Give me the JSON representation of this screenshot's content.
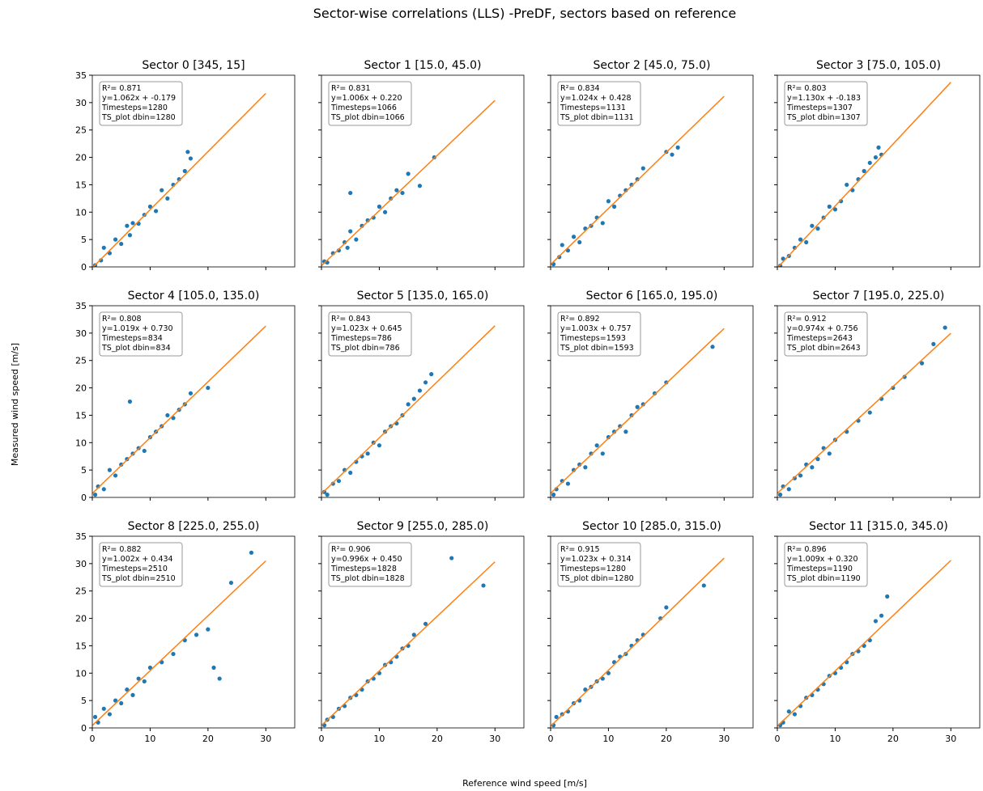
{
  "title": "Sector-wise correlations (LLS) -PreDF, sectors based on reference",
  "x_label": "Reference wind speed [m/s]",
  "y_label": "Measured wind speed [m/s]",
  "chart_data": [
    {
      "type": "scatter",
      "title": "Sector 0 [345, 15]",
      "annotation": [
        "R²= 0.871",
        "y=1.062x + -0.179",
        "Timesteps=1280",
        "TS_plot dbin=1280"
      ],
      "xlim": [
        0,
        35
      ],
      "ylim": [
        0,
        35
      ],
      "xticks": [
        0,
        10,
        20,
        30
      ],
      "yticks": [
        0,
        5,
        10,
        15,
        20,
        25,
        30,
        35
      ],
      "series": [
        {
          "color": "#1f77b4",
          "x": [
            0.5,
            1.5,
            2,
            3,
            4,
            5,
            6,
            6.5,
            7,
            8,
            9,
            10,
            11,
            12,
            13,
            14,
            15,
            16,
            16.5,
            17
          ],
          "values": [
            0.3,
            1.2,
            3.5,
            2.5,
            5,
            4.2,
            7.5,
            5.8,
            8,
            7.9,
            9.5,
            11,
            10.2,
            14,
            12.5,
            15,
            16,
            17.5,
            21,
            19.8
          ]
        },
        {
          "type": "line",
          "color": "#ff7f0e",
          "x": [
            0,
            30
          ],
          "values": [
            -0.179,
            31.681
          ]
        }
      ]
    },
    {
      "type": "scatter",
      "title": "Sector 1 [15.0, 45.0)",
      "annotation": [
        "R²= 0.831",
        "y=1.006x + 0.220",
        "Timesteps=1066",
        "TS_plot dbin=1066"
      ],
      "xlim": [
        0,
        35
      ],
      "ylim": [
        0,
        35
      ],
      "xticks": [
        0,
        10,
        20,
        30
      ],
      "yticks": [
        0,
        5,
        10,
        15,
        20,
        25,
        30,
        35
      ],
      "series": [
        {
          "color": "#1f77b4",
          "x": [
            0.5,
            1,
            2,
            3,
            4,
            4.5,
            5,
            6,
            7,
            8,
            9,
            10,
            11,
            12,
            13,
            14,
            15,
            17,
            19.5,
            5
          ],
          "values": [
            1,
            0.8,
            2.5,
            3,
            4.5,
            3.5,
            6.5,
            5,
            7.5,
            8.5,
            9,
            11,
            10,
            12.5,
            14,
            13.5,
            17,
            14.8,
            20,
            13.5
          ]
        },
        {
          "type": "line",
          "color": "#ff7f0e",
          "x": [
            0,
            30
          ],
          "values": [
            0.22,
            30.4
          ]
        }
      ]
    },
    {
      "type": "scatter",
      "title": "Sector 2 [45.0, 75.0)",
      "annotation": [
        "R²= 0.834",
        "y=1.024x + 0.428",
        "Timesteps=1131",
        "TS_plot dbin=1131"
      ],
      "xlim": [
        0,
        35
      ],
      "ylim": [
        0,
        35
      ],
      "xticks": [
        0,
        10,
        20,
        30
      ],
      "yticks": [
        0,
        5,
        10,
        15,
        20,
        25,
        30,
        35
      ],
      "series": [
        {
          "color": "#1f77b4",
          "x": [
            0.5,
            1.5,
            2,
            3,
            4,
            5,
            6,
            7,
            8,
            9,
            10,
            11,
            12,
            13,
            14,
            15,
            16,
            20,
            21,
            22
          ],
          "values": [
            0.5,
            1.8,
            4,
            3,
            5.5,
            4.5,
            7,
            7.5,
            9,
            8,
            12,
            11,
            13,
            14,
            15,
            16,
            18,
            21,
            20.5,
            21.8
          ]
        },
        {
          "type": "line",
          "color": "#ff7f0e",
          "x": [
            0,
            30
          ],
          "values": [
            0.428,
            31.148
          ]
        }
      ]
    },
    {
      "type": "scatter",
      "title": "Sector 3 [75.0, 105.0)",
      "annotation": [
        "R²= 0.803",
        "y=1.130x + -0.183",
        "Timesteps=1307",
        "TS_plot dbin=1307"
      ],
      "xlim": [
        0,
        35
      ],
      "ylim": [
        0,
        35
      ],
      "xticks": [
        0,
        10,
        20,
        30
      ],
      "yticks": [
        0,
        5,
        10,
        15,
        20,
        25,
        30,
        35
      ],
      "series": [
        {
          "color": "#1f77b4",
          "x": [
            0.5,
            1,
            2,
            3,
            4,
            5,
            6,
            7,
            8,
            9,
            10,
            11,
            12,
            13,
            14,
            15,
            16,
            17,
            17.5,
            18
          ],
          "values": [
            0.2,
            1.5,
            2,
            3.5,
            5,
            4.5,
            7.5,
            7,
            9,
            11,
            10.5,
            12,
            15,
            14,
            16,
            17.5,
            19,
            20,
            21.8,
            20.5
          ]
        },
        {
          "type": "line",
          "color": "#ff7f0e",
          "x": [
            0,
            30
          ],
          "values": [
            -0.183,
            33.717
          ]
        }
      ]
    },
    {
      "type": "scatter",
      "title": "Sector 4 [105.0, 135.0)",
      "annotation": [
        "R²= 0.808",
        "y=1.019x + 0.730",
        "Timesteps=834",
        "TS_plot dbin=834"
      ],
      "xlim": [
        0,
        35
      ],
      "ylim": [
        0,
        35
      ],
      "xticks": [
        0,
        10,
        20,
        30
      ],
      "yticks": [
        0,
        5,
        10,
        15,
        20,
        25,
        30,
        35
      ],
      "series": [
        {
          "color": "#1f77b4",
          "x": [
            0.5,
            1,
            2,
            3,
            4,
            5,
            6,
            6.5,
            7,
            8,
            9,
            10,
            11,
            12,
            13,
            14,
            15,
            16,
            17,
            20
          ],
          "values": [
            0.5,
            2,
            1.5,
            5,
            4,
            6,
            7,
            17.5,
            8,
            9,
            8.5,
            11,
            12,
            13,
            15,
            14.5,
            16,
            17,
            19,
            20
          ]
        },
        {
          "type": "line",
          "color": "#ff7f0e",
          "x": [
            0,
            30
          ],
          "values": [
            0.73,
            31.3
          ]
        }
      ]
    },
    {
      "type": "scatter",
      "title": "Sector 5 [135.0, 165.0)",
      "annotation": [
        "R²= 0.843",
        "y=1.023x + 0.645",
        "Timesteps=786",
        "TS_plot dbin=786"
      ],
      "xlim": [
        0,
        35
      ],
      "ylim": [
        0,
        35
      ],
      "xticks": [
        0,
        10,
        20,
        30
      ],
      "yticks": [
        0,
        5,
        10,
        15,
        20,
        25,
        30,
        35
      ],
      "series": [
        {
          "color": "#1f77b4",
          "x": [
            0.5,
            1,
            2,
            3,
            4,
            5,
            6,
            7,
            8,
            9,
            10,
            11,
            12,
            13,
            14,
            15,
            16,
            17,
            18,
            19
          ],
          "values": [
            1,
            0.5,
            2.5,
            3,
            5,
            4.5,
            6.5,
            7.5,
            8,
            10,
            9.5,
            12,
            13,
            13.5,
            15,
            17,
            18,
            19.5,
            21,
            22.5
          ]
        },
        {
          "type": "line",
          "color": "#ff7f0e",
          "x": [
            0,
            30
          ],
          "values": [
            0.645,
            31.335
          ]
        }
      ]
    },
    {
      "type": "scatter",
      "title": "Sector 6 [165.0, 195.0)",
      "annotation": [
        "R²= 0.892",
        "y=1.003x + 0.757",
        "Timesteps=1593",
        "TS_plot dbin=1593"
      ],
      "xlim": [
        0,
        35
      ],
      "ylim": [
        0,
        35
      ],
      "xticks": [
        0,
        10,
        20,
        30
      ],
      "yticks": [
        0,
        5,
        10,
        15,
        20,
        25,
        30,
        35
      ],
      "series": [
        {
          "color": "#1f77b4",
          "x": [
            0.5,
            1,
            2,
            3,
            4,
            5,
            6,
            7,
            8,
            9,
            10,
            11,
            12,
            13,
            14,
            15,
            16,
            18,
            20,
            28
          ],
          "values": [
            0.5,
            1.5,
            3,
            2.5,
            5,
            6,
            5.5,
            8,
            9.5,
            8,
            11,
            12,
            13,
            12,
            15,
            16.5,
            17,
            19,
            21,
            27.5
          ]
        },
        {
          "type": "line",
          "color": "#ff7f0e",
          "x": [
            0,
            30
          ],
          "values": [
            0.757,
            30.847
          ]
        }
      ]
    },
    {
      "type": "scatter",
      "title": "Sector 7 [195.0, 225.0)",
      "annotation": [
        "R²= 0.912",
        "y=0.974x + 0.756",
        "Timesteps=2643",
        "TS_plot dbin=2643"
      ],
      "xlim": [
        0,
        35
      ],
      "ylim": [
        0,
        35
      ],
      "xticks": [
        0,
        10,
        20,
        30
      ],
      "yticks": [
        0,
        5,
        10,
        15,
        20,
        25,
        30,
        35
      ],
      "series": [
        {
          "color": "#1f77b4",
          "x": [
            0.5,
            1,
            2,
            3,
            4,
            5,
            6,
            7,
            8,
            9,
            10,
            12,
            14,
            16,
            18,
            20,
            22,
            25,
            27,
            29
          ],
          "values": [
            0.5,
            2,
            1.5,
            3.5,
            4,
            6,
            5.5,
            7,
            9,
            8,
            10.5,
            12,
            14,
            15.5,
            18,
            20,
            22,
            24.5,
            28,
            31
          ]
        },
        {
          "type": "line",
          "color": "#ff7f0e",
          "x": [
            0,
            30
          ],
          "values": [
            0.756,
            29.976
          ]
        }
      ]
    },
    {
      "type": "scatter",
      "title": "Sector 8 [225.0, 255.0)",
      "annotation": [
        "R²= 0.882",
        "y=1.002x + 0.434",
        "Timesteps=2510",
        "TS_plot dbin=2510"
      ],
      "xlim": [
        0,
        35
      ],
      "ylim": [
        0,
        35
      ],
      "xticks": [
        0,
        10,
        20,
        30
      ],
      "yticks": [
        0,
        5,
        10,
        15,
        20,
        25,
        30,
        35
      ],
      "series": [
        {
          "color": "#1f77b4",
          "x": [
            0.5,
            1,
            2,
            3,
            4,
            5,
            6,
            7,
            8,
            9,
            10,
            12,
            14,
            16,
            18,
            20,
            21,
            22,
            24,
            27.5
          ],
          "values": [
            2,
            1,
            3.5,
            2.5,
            5,
            4.5,
            7,
            6,
            9,
            8.5,
            11,
            12,
            13.5,
            16,
            17,
            18,
            11,
            9,
            26.5,
            32
          ]
        },
        {
          "type": "line",
          "color": "#ff7f0e",
          "x": [
            0,
            30
          ],
          "values": [
            0.434,
            30.494
          ]
        }
      ]
    },
    {
      "type": "scatter",
      "title": "Sector 9 [255.0, 285.0)",
      "annotation": [
        "R²= 0.906",
        "y=0.996x + 0.450",
        "Timesteps=1828",
        "TS_plot dbin=1828"
      ],
      "xlim": [
        0,
        35
      ],
      "ylim": [
        0,
        35
      ],
      "xticks": [
        0,
        10,
        20,
        30
      ],
      "yticks": [
        0,
        5,
        10,
        15,
        20,
        25,
        30,
        35
      ],
      "series": [
        {
          "color": "#1f77b4",
          "x": [
            0.5,
            1,
            2,
            3,
            4,
            5,
            6,
            7,
            8,
            9,
            10,
            11,
            12,
            13,
            14,
            15,
            16,
            18,
            22.5,
            28
          ],
          "values": [
            0.5,
            1.5,
            2,
            3.5,
            4,
            5.5,
            6,
            7,
            8.5,
            9,
            10,
            11.5,
            12,
            13,
            14.5,
            15,
            17,
            19,
            31,
            26
          ]
        },
        {
          "type": "line",
          "color": "#ff7f0e",
          "x": [
            0,
            30
          ],
          "values": [
            0.45,
            30.33
          ]
        }
      ]
    },
    {
      "type": "scatter",
      "title": "Sector 10 [285.0, 315.0)",
      "annotation": [
        "R²= 0.915",
        "y=1.023x + 0.314",
        "Timesteps=1280",
        "TS_plot dbin=1280"
      ],
      "xlim": [
        0,
        35
      ],
      "ylim": [
        0,
        35
      ],
      "xticks": [
        0,
        10,
        20,
        30
      ],
      "yticks": [
        0,
        5,
        10,
        15,
        20,
        25,
        30,
        35
      ],
      "series": [
        {
          "color": "#1f77b4",
          "x": [
            0.5,
            1,
            2,
            3,
            4,
            5,
            6,
            7,
            8,
            9,
            10,
            11,
            12,
            13,
            14,
            15,
            16,
            19,
            20,
            26.5
          ],
          "values": [
            0.5,
            2,
            2.5,
            3,
            4.5,
            5,
            7,
            7.5,
            8.5,
            9,
            10,
            12,
            13,
            13.5,
            15,
            16,
            17,
            20,
            22,
            26
          ]
        },
        {
          "type": "line",
          "color": "#ff7f0e",
          "x": [
            0,
            30
          ],
          "values": [
            0.314,
            31.004
          ]
        }
      ]
    },
    {
      "type": "scatter",
      "title": "Sector 11 [315.0, 345.0)",
      "annotation": [
        "R²= 0.896",
        "y=1.009x + 0.320",
        "Timesteps=1190",
        "TS_plot dbin=1190"
      ],
      "xlim": [
        0,
        35
      ],
      "ylim": [
        0,
        35
      ],
      "xticks": [
        0,
        10,
        20,
        30
      ],
      "yticks": [
        0,
        5,
        10,
        15,
        20,
        25,
        30,
        35
      ],
      "series": [
        {
          "color": "#1f77b4",
          "x": [
            0.5,
            1,
            2,
            3,
            4,
            5,
            6,
            7,
            8,
            9,
            10,
            11,
            12,
            13,
            14,
            15,
            16,
            17,
            18,
            19
          ],
          "values": [
            0.5,
            1,
            3,
            2.5,
            4,
            5.5,
            6,
            7,
            8,
            9.5,
            10,
            11,
            12,
            13.5,
            14,
            15,
            16,
            19.5,
            20.5,
            24
          ]
        },
        {
          "type": "line",
          "color": "#ff7f0e",
          "x": [
            0,
            30
          ],
          "values": [
            0.32,
            30.59
          ]
        }
      ]
    }
  ]
}
